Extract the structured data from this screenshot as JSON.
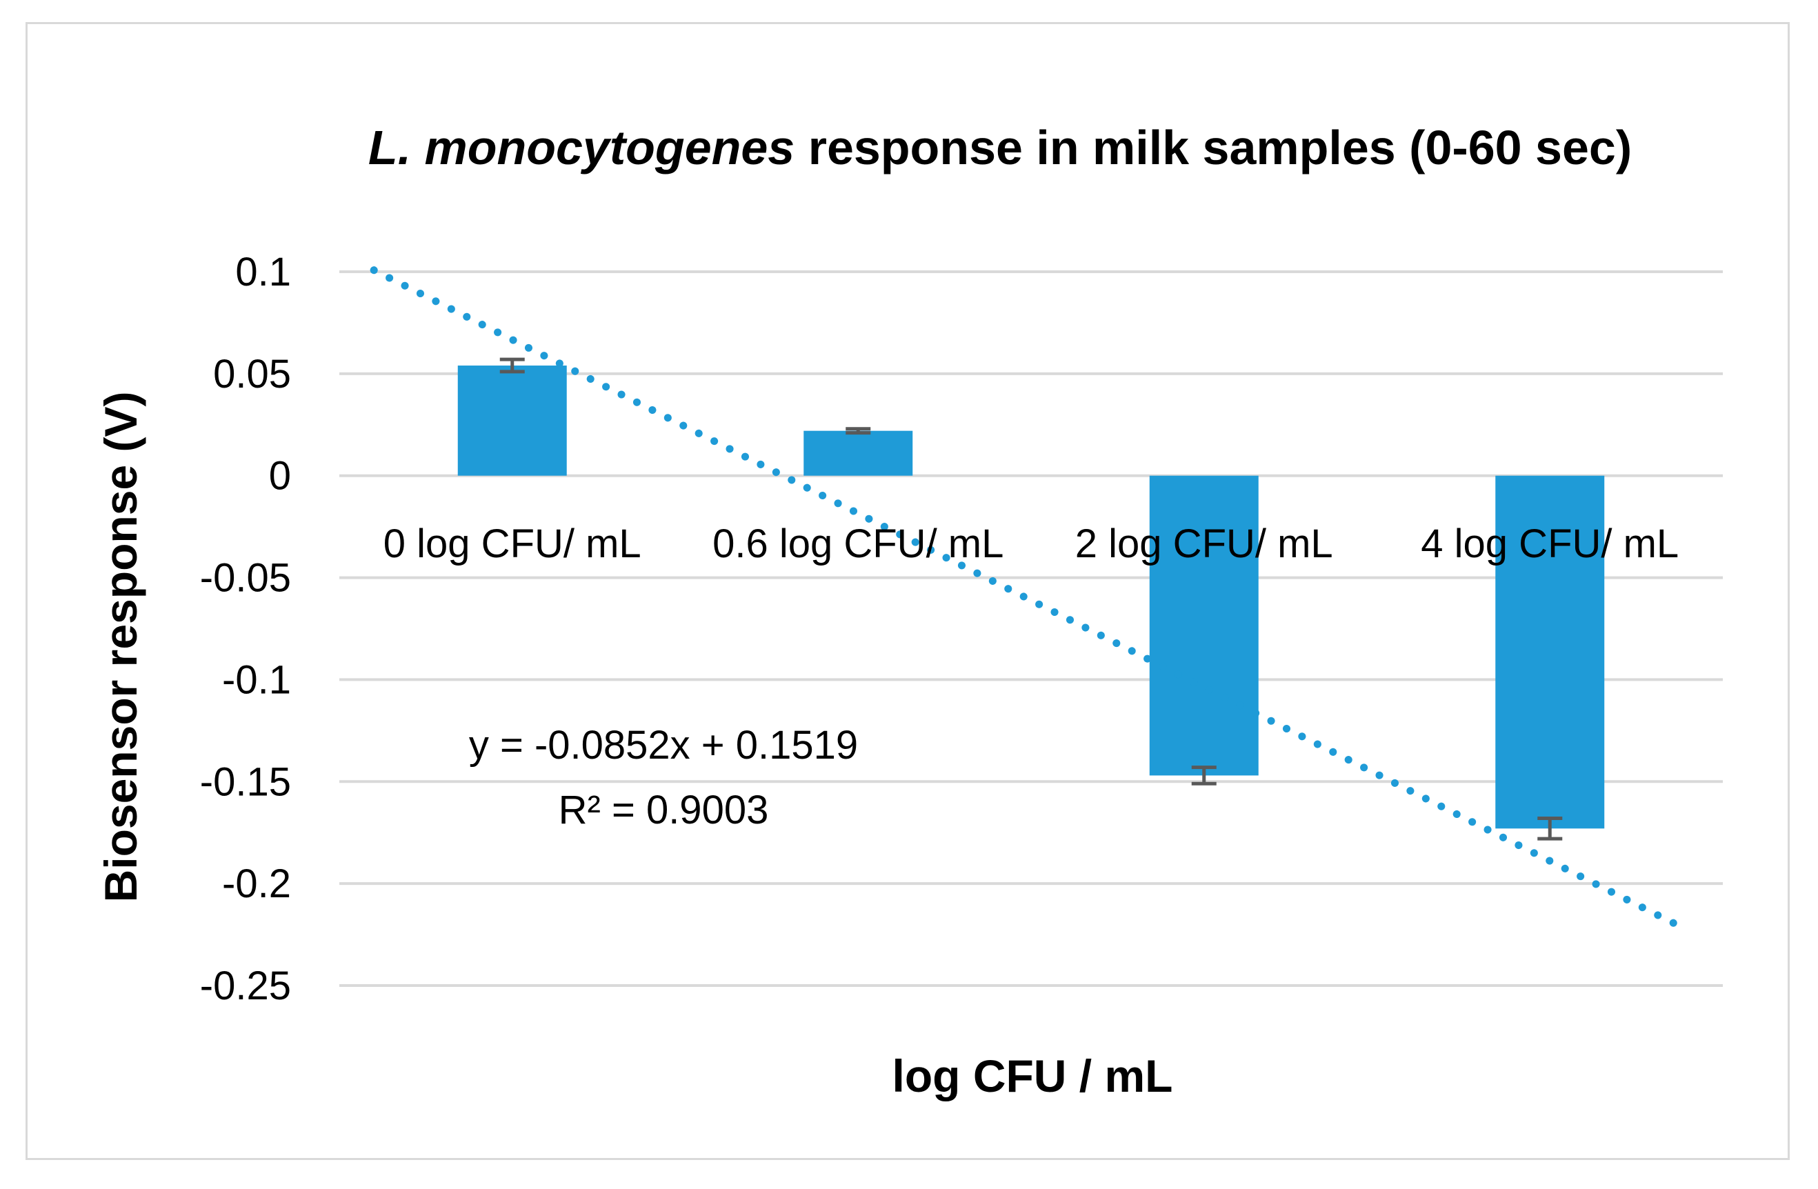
{
  "chart_data": {
    "type": "bar",
    "title_italic": "L. monocytogenes",
    "title_rest": " response in milk samples (0-60 sec)",
    "xlabel": "log CFU / mL",
    "ylabel": "Biosensor response (V)",
    "ylim": [
      -0.25,
      0.1
    ],
    "yticks": [
      0.1,
      0.05,
      0,
      -0.05,
      -0.1,
      -0.15,
      -0.2,
      -0.25
    ],
    "ytick_labels": [
      "0.1",
      "0.05",
      "0",
      "-0.05",
      "-0.1",
      "-0.15",
      "-0.2",
      "-0.25"
    ],
    "categories": [
      "0 log CFU/ mL",
      "0.6 log CFU/ mL",
      "2 log CFU/ mL",
      "4 log CFU/ mL"
    ],
    "values": [
      0.054,
      0.022,
      -0.147,
      -0.173
    ],
    "errors": [
      0.003,
      0.001,
      0.004,
      0.005
    ],
    "bar_color": "#1f9bd7",
    "error_color": "#595959",
    "grid": true,
    "trendline": {
      "type": "linear",
      "style": "dotted",
      "color": "#1f9bd7",
      "slope": -0.0852,
      "intercept": 0.1519,
      "x_start": 0.6,
      "x_end": 4.4,
      "equation": "y = -0.0852x + 0.1519",
      "r2_label": "R² = 0.9003"
    }
  }
}
